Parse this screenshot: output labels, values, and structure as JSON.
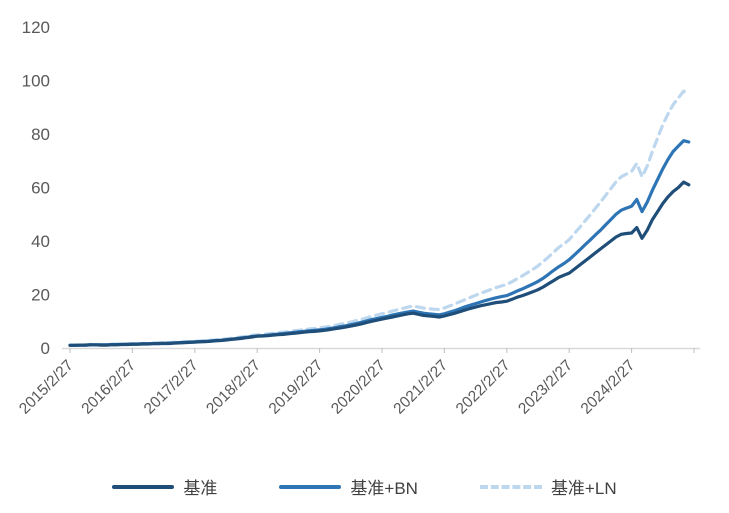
{
  "chart_data": {
    "type": "line",
    "title": "",
    "xlabel": "",
    "ylabel": "",
    "ylim": [
      0,
      120
    ],
    "y_ticks": [
      0,
      20,
      40,
      60,
      80,
      100,
      120
    ],
    "x_tick_labels": [
      "2015/2/27",
      "2016/2/27",
      "2017/2/27",
      "2018/2/27",
      "2019/2/27",
      "2020/2/27",
      "2021/2/27",
      "2022/2/27",
      "2023/2/27",
      "2024/2/27"
    ],
    "x_frequency": "monthly",
    "grid": false,
    "legend_position": "bottom",
    "series": [
      {
        "name": "基准",
        "color": "#1F4E79",
        "dash": "",
        "values": [
          1.0,
          1.0,
          1.1,
          1.1,
          1.2,
          1.2,
          1.1,
          1.1,
          1.2,
          1.2,
          1.3,
          1.3,
          1.4,
          1.4,
          1.5,
          1.5,
          1.6,
          1.6,
          1.7,
          1.7,
          1.8,
          1.9,
          2.0,
          2.1,
          2.2,
          2.3,
          2.4,
          2.5,
          2.7,
          2.8,
          3.0,
          3.2,
          3.4,
          3.6,
          3.9,
          4.1,
          4.4,
          4.5,
          4.6,
          4.8,
          5.0,
          5.1,
          5.3,
          5.5,
          5.7,
          5.9,
          6.1,
          6.2,
          6.4,
          6.6,
          6.9,
          7.2,
          7.5,
          7.8,
          8.2,
          8.6,
          9.0,
          9.5,
          10.0,
          10.4,
          10.8,
          11.2,
          11.6,
          12.0,
          12.4,
          12.8,
          13.0,
          12.6,
          12.2,
          12.0,
          11.8,
          11.6,
          12.0,
          12.5,
          13.0,
          13.6,
          14.2,
          14.8,
          15.3,
          15.8,
          16.2,
          16.6,
          17.0,
          17.2,
          17.5,
          18.2,
          19.0,
          19.6,
          20.3,
          21.0,
          21.8,
          22.8,
          24.0,
          25.2,
          26.4,
          27.2,
          28.0,
          29.5,
          31.0,
          32.5,
          34.0,
          35.5,
          37.0,
          38.5,
          40.0,
          41.5,
          42.5,
          42.8,
          43.0,
          45.0,
          41.0,
          44.0,
          48.0,
          51.0,
          54.0,
          56.5,
          58.5,
          60.0,
          62.0,
          61.0
        ]
      },
      {
        "name": "基准+BN",
        "color": "#2E75B6",
        "dash": "",
        "values": [
          1.0,
          1.0,
          1.1,
          1.1,
          1.2,
          1.2,
          1.2,
          1.2,
          1.3,
          1.3,
          1.4,
          1.4,
          1.5,
          1.5,
          1.6,
          1.6,
          1.7,
          1.7,
          1.8,
          1.8,
          1.9,
          2.0,
          2.1,
          2.2,
          2.3,
          2.4,
          2.5,
          2.6,
          2.8,
          2.9,
          3.1,
          3.3,
          3.5,
          3.8,
          4.0,
          4.3,
          4.5,
          4.6,
          4.8,
          5.0,
          5.2,
          5.4,
          5.6,
          5.8,
          6.0,
          6.2,
          6.4,
          6.6,
          6.8,
          7.0,
          7.3,
          7.6,
          8.0,
          8.3,
          8.7,
          9.1,
          9.6,
          10.1,
          10.6,
          11.0,
          11.4,
          11.8,
          12.3,
          12.7,
          13.1,
          13.5,
          13.8,
          13.4,
          13.0,
          12.8,
          12.6,
          12.4,
          12.8,
          13.4,
          14.0,
          14.7,
          15.4,
          16.0,
          16.6,
          17.2,
          17.8,
          18.3,
          18.8,
          19.2,
          19.6,
          20.4,
          21.3,
          22.1,
          23.0,
          23.9,
          24.9,
          26.1,
          27.5,
          29.0,
          30.4,
          31.6,
          33.0,
          34.8,
          36.6,
          38.5,
          40.3,
          42.2,
          44.0,
          46.0,
          48.0,
          50.0,
          51.5,
          52.3,
          53.0,
          55.5,
          51.0,
          54.5,
          59.0,
          63.0,
          67.0,
          70.5,
          73.5,
          75.5,
          77.5,
          77.0
        ]
      },
      {
        "name": "基准+LN",
        "color": "#BDD7EE",
        "dash": "8 6",
        "values": [
          1.1,
          1.1,
          1.2,
          1.2,
          1.3,
          1.3,
          1.3,
          1.3,
          1.4,
          1.4,
          1.5,
          1.5,
          1.6,
          1.6,
          1.7,
          1.7,
          1.8,
          1.9,
          2.0,
          2.0,
          2.1,
          2.2,
          2.3,
          2.4,
          2.5,
          2.6,
          2.7,
          2.9,
          3.0,
          3.2,
          3.4,
          3.6,
          3.9,
          4.1,
          4.4,
          4.7,
          4.9,
          5.1,
          5.3,
          5.5,
          5.7,
          5.9,
          6.1,
          6.4,
          6.6,
          6.9,
          7.1,
          7.3,
          7.5,
          7.8,
          8.1,
          8.5,
          8.9,
          9.3,
          9.7,
          10.2,
          10.7,
          11.2,
          11.8,
          12.3,
          12.8,
          13.3,
          13.8,
          14.3,
          14.8,
          15.3,
          15.7,
          15.3,
          14.9,
          14.7,
          14.5,
          14.4,
          15.0,
          15.7,
          16.5,
          17.3,
          18.1,
          18.9,
          19.7,
          20.5,
          21.2,
          21.9,
          22.6,
          23.2,
          23.8,
          24.8,
          25.9,
          27.0,
          28.2,
          29.4,
          30.7,
          32.3,
          34.0,
          35.8,
          37.6,
          39.0,
          40.5,
          42.8,
          45.0,
          47.4,
          49.7,
          52.1,
          54.5,
          57.0,
          59.6,
          62.1,
          64.0,
          65.0,
          66.0,
          69.0,
          64.0,
          68.0,
          73.5,
          78.5,
          83.5,
          87.5,
          91.0,
          93.5,
          96.0,
          95.0
        ]
      }
    ]
  },
  "colors": {
    "background": "#FFFFFF",
    "axis_line": "#D9D9D9",
    "tick_mark": "#BFBFBF",
    "tick_text": "#595959",
    "legend_text": "#404040"
  }
}
